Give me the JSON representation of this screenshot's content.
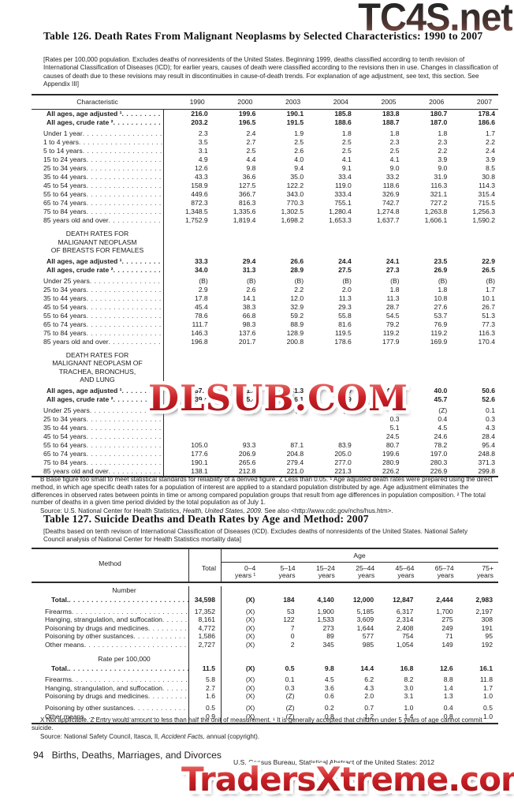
{
  "watermarks": {
    "top": "TC4S.net",
    "middle": "DLSUB.COM",
    "bottom": "TradersXtreme.com"
  },
  "table126": {
    "title": "Table 126. Death Rates From Malignant Neoplasms by Selected Characteristics: 1990 to 2007",
    "headnote": "[Rates per 100,000 population. Excludes deaths of nonresidents of the United States.  Beginning 1999, deaths classified according to tenth revision of International Classification of Diseases (ICD); for earlier years, causes of death were classified according to the revisions then in use. Changes in classification of causes of death due to these revisions may result in discontinuities in cause-of-death trends. For explanation of age adjustment, see text, this section. See Appendix III]",
    "stub_header": "Characteristic",
    "years": [
      "1990",
      "2000",
      "2003",
      "2004",
      "2005",
      "2006",
      "2007"
    ],
    "sections": [
      {
        "header_lines": [],
        "rows": [
          {
            "label": "All ages, age adjusted ¹",
            "bold": true,
            "values": [
              "216.0",
              "199.6",
              "190.1",
              "185.8",
              "183.8",
              "180.7",
              "178.4"
            ]
          },
          {
            "label": "All ages, crude rate ²",
            "bold": true,
            "values": [
              "203.2",
              "196.5",
              "191.5",
              "188.6",
              "188.7",
              "187.0",
              "186.6"
            ]
          },
          {
            "label": "Under 1 year",
            "bold": false,
            "values": [
              "2.3",
              "2.4",
              "1.9",
              "1.8",
              "1.8",
              "1.8",
              "1.7"
            ]
          },
          {
            "label": "1 to 4 years",
            "bold": false,
            "values": [
              "3.5",
              "2.7",
              "2.5",
              "2.5",
              "2.3",
              "2.3",
              "2.2"
            ]
          },
          {
            "label": "5 to 14 years",
            "bold": false,
            "values": [
              "3.1",
              "2.5",
              "2.6",
              "2.5",
              "2.5",
              "2.2",
              "2.4"
            ]
          },
          {
            "label": "15 to 24 years",
            "bold": false,
            "values": [
              "4.9",
              "4.4",
              "4.0",
              "4.1",
              "4.1",
              "3.9",
              "3.9"
            ]
          },
          {
            "label": "25 to 34 years",
            "bold": false,
            "values": [
              "12.6",
              "9.8",
              "9.4",
              "9.1",
              "9.0",
              "9.0",
              "8.5"
            ]
          },
          {
            "label": "35 to 44 years",
            "bold": false,
            "values": [
              "43.3",
              "36.6",
              "35.0",
              "33.4",
              "33.2",
              "31.9",
              "30.8"
            ]
          },
          {
            "label": "45 to 54 years",
            "bold": false,
            "values": [
              "158.9",
              "127.5",
              "122.2",
              "119.0",
              "118.6",
              "116.3",
              "114.3"
            ]
          },
          {
            "label": "55 to 64 years",
            "bold": false,
            "values": [
              "449.6",
              "366.7",
              "343.0",
              "333.4",
              "326.9",
              "321.1",
              "315.4"
            ]
          },
          {
            "label": "65 to 74 years",
            "bold": false,
            "values": [
              "872.3",
              "816.3",
              "770.3",
              "755.1",
              "742.7",
              "727.2",
              "715.5"
            ]
          },
          {
            "label": "75 to 84 years",
            "bold": false,
            "values": [
              "1,348.5",
              "1,335.6",
              "1,302.5",
              "1,280.4",
              "1,274.8",
              "1,263.8",
              "1,256.3"
            ]
          },
          {
            "label": "85 years old and over",
            "bold": false,
            "values": [
              "1,752.9",
              "1,819.4",
              "1,698.2",
              "1,653.3",
              "1,637.7",
              "1,606.1",
              "1,590.2"
            ]
          }
        ]
      },
      {
        "header_lines": [
          "DEATH RATES FOR",
          "MALIGNANT NEOPLASM",
          "OF BREASTS FOR FEMALES"
        ],
        "rows": [
          {
            "label": "All ages, age adjusted ¹",
            "bold": true,
            "values": [
              "33.3",
              "29.4",
              "26.6",
              "24.4",
              "24.1",
              "23.5",
              "22.9"
            ]
          },
          {
            "label": "All ages, crude rate ²",
            "bold": true,
            "values": [
              "34.0",
              "31.3",
              "28.9",
              "27.5",
              "27.3",
              "26.9",
              "26.5"
            ]
          },
          {
            "label": "Under 25 years",
            "bold": false,
            "values": [
              "(B)",
              "(B)",
              "(B)",
              "(B)",
              "(B)",
              "(B)",
              "(B)"
            ]
          },
          {
            "label": "25 to 34 years",
            "bold": false,
            "values": [
              "2.9",
              "2.6",
              "2.2",
              "2.0",
              "1.8",
              "1.8",
              "1.7"
            ]
          },
          {
            "label": "35 to 44 years",
            "bold": false,
            "values": [
              "17.8",
              "14.1",
              "12.0",
              "11.3",
              "11.3",
              "10.8",
              "10.1"
            ]
          },
          {
            "label": "45 to 54 years",
            "bold": false,
            "values": [
              "45.4",
              "38.3",
              "32.9",
              "29.3",
              "28.7",
              "27.6",
              "26.7"
            ]
          },
          {
            "label": "55 to 64 years",
            "bold": false,
            "values": [
              "78.6",
              "66.8",
              "59.2",
              "55.8",
              "54.5",
              "53.7",
              "51.3"
            ]
          },
          {
            "label": "65 to 74 years",
            "bold": false,
            "values": [
              "111.7",
              "98.3",
              "88.9",
              "81.6",
              "79.2",
              "76.9",
              "77.3"
            ]
          },
          {
            "label": "75 to 84 years",
            "bold": false,
            "values": [
              "146.3",
              "137.6",
              "128.9",
              "119.5",
              "119.2",
              "119.2",
              "116.3"
            ]
          },
          {
            "label": "85 years old and over",
            "bold": false,
            "values": [
              "196.8",
              "201.7",
              "200.8",
              "178.6",
              "177.9",
              "169.9",
              "170.4"
            ]
          }
        ]
      },
      {
        "header_lines": [
          "DEATH RATES FOR",
          "MALIGNANT NEOPLASM OF",
          "TRACHEA, BRONCHUS,",
          "AND LUNG"
        ],
        "rows": [
          {
            "label": "All ages, age adjusted ¹",
            "bold": true,
            "values": [
              "37.1",
              "41.3",
              "41.3",
              "40.9",
              "40.5",
              "40.0",
              "50.6"
            ]
          },
          {
            "label": "All ages, crude rate ²",
            "bold": true,
            "values": [
              "39.4",
              "45.4",
              "46.1",
              "45.9",
              "45.9",
              "45.7",
              "52.6"
            ]
          },
          {
            "label": "Under 25 years",
            "bold": false,
            "values": [
              "(Z)",
              "(Z)",
              "(Z)",
              "(Z)",
              "(Z)",
              "(Z)",
              "0.1"
            ]
          },
          {
            "label": "25 to 34 years",
            "bold": false,
            "values": [
              "",
              "",
              "",
              "",
              "0.3",
              "0.4",
              "0.3"
            ]
          },
          {
            "label": "35 to 44 years",
            "bold": false,
            "values": [
              "",
              "",
              "",
              "",
              "5.1",
              "4.5",
              "4.3"
            ]
          },
          {
            "label": "45 to 54 years",
            "bold": false,
            "values": [
              "",
              "",
              "",
              "",
              "24.5",
              "24.6",
              "28.4"
            ]
          },
          {
            "label": "55 to 64 years",
            "bold": false,
            "values": [
              "105.0",
              "93.3",
              "87.1",
              "83.9",
              "80.7",
              "78.2",
              "95.4"
            ]
          },
          {
            "label": "65 to 74 years",
            "bold": false,
            "values": [
              "177.6",
              "206.9",
              "204.8",
              "205.0",
              "199.6",
              "197.0",
              "248.8"
            ]
          },
          {
            "label": "75 to 84 years",
            "bold": false,
            "values": [
              "190.1",
              "265.6",
              "279.4",
              "277.0",
              "280.9",
              "280.3",
              "371.3"
            ]
          },
          {
            "label": "85 years old and over",
            "bold": false,
            "values": [
              "138.1",
              "212.8",
              "221.0",
              "221.3",
              "226.2",
              "226.9",
              "299.8"
            ]
          }
        ]
      }
    ],
    "footnote": "B Base figure too small to meet statistical standards for reliability of a derived figure. Z Less than 0.05. ¹ Age adjusted death rates were prepared using the direct method, in which  age specific death rates for a population of interest are applied to a standard population distributed by age. Age adjustment eliminates the differences in observed rates between points in time or among compared population groups that result from age differences in population composition. ² The total number of deaths in a given time period divided by the total population as of July 1.",
    "source_prefix": "Source: U.S. National Center for Health Statistics, ",
    "source_italic": "Health, United States, 2009.",
    "source_suffix": " See also <http://www.cdc.gov/nchs/hus.htm>."
  },
  "table127": {
    "title": "Table 127.  Suicide Deaths and Death Rates by Age and Method: 2007",
    "headnote": "[Deaths based on tenth revison of International Classification of Diseases (ICD). Excludes deaths of nonresidents of the United States. National Safety Council analysis of National Center for Health Statistics mortality data]",
    "stub_header": "Method",
    "age_caption": "Age",
    "total_header": "Total",
    "age_cols": [
      {
        "line1": "0–4",
        "line2": "years ¹"
      },
      {
        "line1": "5–14",
        "line2": "years"
      },
      {
        "line1": "15–24",
        "line2": "years"
      },
      {
        "line1": "25–44",
        "line2": "years"
      },
      {
        "line1": "45–64",
        "line2": "years"
      },
      {
        "line1": "65–74",
        "line2": "years"
      },
      {
        "line1": "75+",
        "line2": "years"
      }
    ],
    "number_header": "Number",
    "rate_header": "Rate per 100,000",
    "number_rows": [
      {
        "label": "Total.",
        "bold": true,
        "values": [
          "34,598",
          "(X)",
          "184",
          "4,140",
          "12,000",
          "12,847",
          "2,444",
          "2,983"
        ]
      },
      {
        "label": "Firearms",
        "bold": false,
        "values": [
          "17,352",
          "(X)",
          "53",
          "1,900",
          "5,185",
          "6,317",
          "1,700",
          "2,197"
        ]
      },
      {
        "label": "Hanging, strangulation, and  suffocation",
        "bold": false,
        "values": [
          "8,161",
          "(X)",
          "122",
          "1,533",
          "3,609",
          "2,314",
          "275",
          "308"
        ]
      },
      {
        "label": "Poisoning by drugs and  medicines",
        "bold": false,
        "values": [
          "4,772",
          "(X)",
          "7",
          "273",
          "1,644",
          "2,408",
          "249",
          "191"
        ]
      },
      {
        "label": "Poisoning by other sustances",
        "bold": false,
        "values": [
          "1,586",
          "(X)",
          "0",
          "89",
          "577",
          "754",
          "71",
          "95"
        ]
      },
      {
        "label": "Other means",
        "bold": false,
        "values": [
          "2,727",
          "(X)",
          "2",
          "345",
          "985",
          "1,054",
          "149",
          "192"
        ]
      }
    ],
    "rate_rows": [
      {
        "label": "Total.",
        "bold": true,
        "values": [
          "11.5",
          "(X)",
          "0.5",
          "9.8",
          "14.4",
          "16.8",
          "12.6",
          "16.1"
        ]
      },
      {
        "label": "Firearms",
        "bold": false,
        "values": [
          "5.8",
          "(X)",
          "0.1",
          "4.5",
          "6.2",
          "8.2",
          "8.8",
          "11.8"
        ]
      },
      {
        "label": "Hanging, strangulation, and  suffocation",
        "bold": false,
        "values": [
          "2.7",
          "(X)",
          "0.3",
          "3.6",
          "4.3",
          "3.0",
          "1.4",
          "1.7"
        ]
      },
      {
        "label": "Poisoning by drugs and  medicines",
        "bold": false,
        "values": [
          "1.6",
          "(X)",
          "(Z)",
          "0.6",
          "2.0",
          "3.1",
          "1.3",
          "1.0"
        ]
      },
      {
        "label": "Poisoning by other sustances",
        "bold": false,
        "values": [
          "0.5",
          "(X)",
          "(Z)",
          "0.2",
          "0.7",
          "1.0",
          "0.4",
          "0.5"
        ]
      },
      {
        "label": "Other means",
        "bold": false,
        "values": [
          "0.9",
          "(X)",
          "(Z)",
          "0.8",
          "1.2",
          "1.4",
          "0.8",
          "1.0"
        ]
      }
    ],
    "footnote": "X Not applicable. Z Entry would amount to less than half the unit of measurement. ¹ It is generally accepted that children under 5 years of age cannot commit suicide.",
    "source_prefix": "Source: National Safety Council, Itasca, Il, ",
    "source_italic": "Accident Facts,",
    "source_suffix": " annual (copyright)."
  },
  "footer": {
    "page_number": "94",
    "section_title": "Births, Deaths, Marriages, and Divorces",
    "source_line": "U.S. Census Bureau, Statistical Abstract of the United States: 2012"
  },
  "colors": {
    "watermark_red": "#cb2127",
    "rule": "#2a2a2a"
  }
}
